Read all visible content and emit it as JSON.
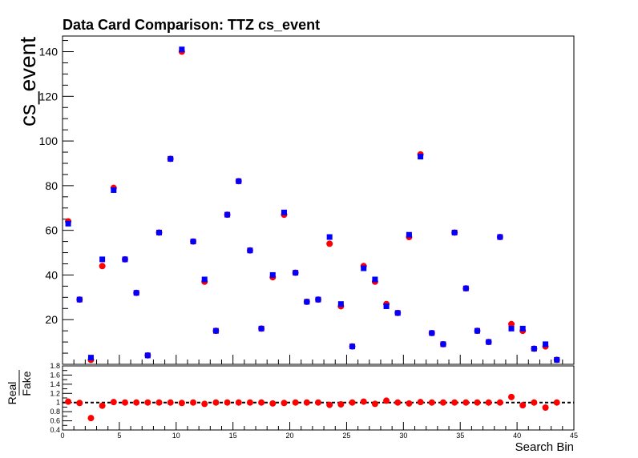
{
  "chart_data": [
    {
      "type": "scatter",
      "title": "Data Card Comparison: TTZ cs_event",
      "ylabel": "cs_event",
      "xlabel": "",
      "xlim": [
        0,
        45
      ],
      "ylim": [
        0,
        147
      ],
      "yticks": [
        20,
        40,
        60,
        80,
        100,
        120,
        140
      ],
      "grid": false,
      "series": [
        {
          "marker": "circle",
          "color": "#ff0000",
          "x": [
            0.5,
            1.5,
            2.5,
            3.5,
            4.5,
            5.5,
            6.5,
            7.5,
            8.5,
            9.5,
            10.5,
            11.5,
            12.5,
            13.5,
            14.5,
            15.5,
            16.5,
            17.5,
            18.5,
            19.5,
            20.5,
            21.5,
            22.5,
            23.5,
            24.5,
            25.5,
            26.5,
            27.5,
            28.5,
            29.5,
            30.5,
            31.5,
            32.5,
            33.5,
            34.5,
            35.5,
            36.5,
            37.5,
            38.5,
            39.5,
            40.5,
            41.5,
            42.5,
            43.5
          ],
          "values": [
            64,
            29,
            2,
            44,
            79,
            47,
            32,
            4,
            59,
            92,
            140,
            55,
            37,
            15,
            67,
            82,
            51,
            16,
            39,
            67,
            41,
            28,
            29,
            54,
            26,
            8,
            44,
            37,
            27,
            23,
            57,
            94,
            14,
            9,
            59,
            34,
            15,
            10,
            57,
            18,
            15,
            7,
            8,
            2
          ]
        },
        {
          "marker": "square",
          "color": "#0000ff",
          "x": [
            0.5,
            1.5,
            2.5,
            3.5,
            4.5,
            5.5,
            6.5,
            7.5,
            8.5,
            9.5,
            10.5,
            11.5,
            12.5,
            13.5,
            14.5,
            15.5,
            16.5,
            17.5,
            18.5,
            19.5,
            20.5,
            21.5,
            22.5,
            23.5,
            24.5,
            25.5,
            26.5,
            27.5,
            28.5,
            29.5,
            30.5,
            31.5,
            32.5,
            33.5,
            34.5,
            35.5,
            36.5,
            37.5,
            38.5,
            39.5,
            40.5,
            41.5,
            42.5,
            43.5
          ],
          "values": [
            63,
            29,
            3,
            47,
            78,
            47,
            32,
            4,
            59,
            92,
            141,
            55,
            38,
            15,
            67,
            82,
            51,
            16,
            40,
            68,
            41,
            28,
            29,
            57,
            27,
            8,
            43,
            38,
            26,
            23,
            58,
            93,
            14,
            9,
            59,
            34,
            15,
            10,
            57,
            16,
            16,
            7,
            9,
            2
          ]
        }
      ]
    },
    {
      "type": "scatter",
      "ylabel_num": "Real",
      "ylabel_den": "Fake",
      "xlabel": "Search Bin",
      "xlim": [
        0,
        45
      ],
      "ylim": [
        0.4,
        1.8
      ],
      "xticks": [
        0,
        5,
        10,
        15,
        20,
        25,
        30,
        35,
        40,
        45
      ],
      "yticks": [
        "0.4",
        "0.6",
        "0.8",
        "1",
        "1.2",
        "1.4",
        "1.6",
        "1.8"
      ],
      "reference_line": 1,
      "series": [
        {
          "marker": "circle",
          "color": "#ff0000",
          "x": [
            0.5,
            1.5,
            2.5,
            3.5,
            4.5,
            5.5,
            6.5,
            7.5,
            8.5,
            9.5,
            10.5,
            11.5,
            12.5,
            13.5,
            14.5,
            15.5,
            16.5,
            17.5,
            18.5,
            19.5,
            20.5,
            21.5,
            22.5,
            23.5,
            24.5,
            25.5,
            26.5,
            27.5,
            28.5,
            29.5,
            30.5,
            31.5,
            32.5,
            33.5,
            34.5,
            35.5,
            36.5,
            37.5,
            38.5,
            39.5,
            40.5,
            41.5,
            42.5,
            43.5
          ],
          "values": [
            1.02,
            0.99,
            0.66,
            0.93,
            1.01,
            1.0,
            1.0,
            1.0,
            1.0,
            1.0,
            0.99,
            1.0,
            0.97,
            1.0,
            1.0,
            1.0,
            1.0,
            1.0,
            0.98,
            0.99,
            1.0,
            1.0,
            1.0,
            0.95,
            0.96,
            1.0,
            1.02,
            0.97,
            1.04,
            1.0,
            0.98,
            1.01,
            1.0,
            1.0,
            1.0,
            1.0,
            1.0,
            1.0,
            1.0,
            1.12,
            0.94,
            1.0,
            0.89,
            1.0
          ]
        }
      ]
    }
  ]
}
